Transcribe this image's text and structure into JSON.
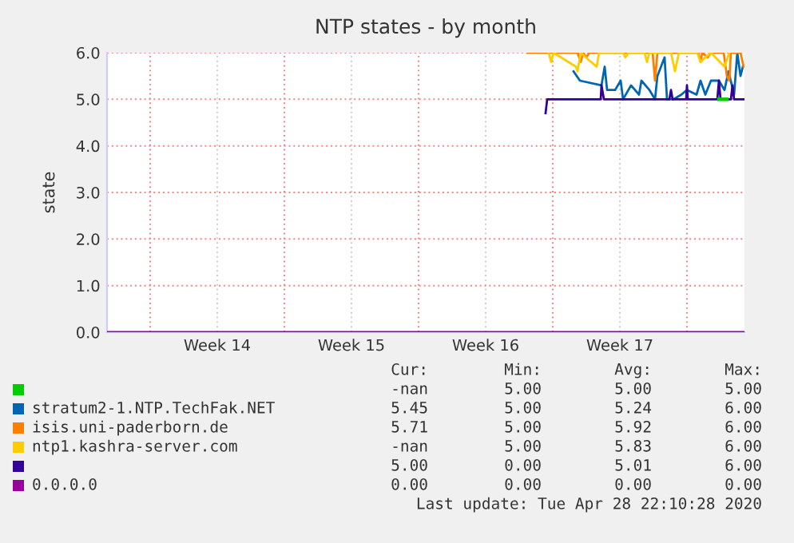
{
  "chart_data": {
    "type": "line",
    "title": "NTP states - by month",
    "ylabel": "state",
    "xlim": [
      "2020-03-27T18:00",
      "2020-04-30T00:00"
    ],
    "ylim": [
      0,
      6
    ],
    "xticks": [
      {
        "value": "2020-03-30",
        "label": null
      },
      {
        "value": "2020-04-02T12:00",
        "label": "Week 14"
      },
      {
        "value": "2020-04-06",
        "label": null
      },
      {
        "value": "2020-04-09T12:00",
        "label": "Week 15"
      },
      {
        "value": "2020-04-13",
        "label": null
      },
      {
        "value": "2020-04-16T12:00",
        "label": "Week 16"
      },
      {
        "value": "2020-04-20",
        "label": null
      },
      {
        "value": "2020-04-23T12:00",
        "label": "Week 17"
      },
      {
        "value": "2020-04-27",
        "label": null
      }
    ],
    "yticks": [
      {
        "value": 0,
        "label": "0.0"
      },
      {
        "value": 1,
        "label": "1.0"
      },
      {
        "value": 2,
        "label": "2.0"
      },
      {
        "value": 3,
        "label": "3.0"
      },
      {
        "value": 4,
        "label": "4.0"
      },
      {
        "value": 5,
        "label": "5.0"
      },
      {
        "value": 6,
        "label": "6.0"
      }
    ],
    "grid": true,
    "legend": "bottom",
    "series": [
      {
        "color": "#00cc00",
        "x": [
          "2020-04-28T16:00",
          "2020-04-29T02:00"
        ],
        "values": [
          5.0,
          5.0
        ]
      },
      {
        "color": "#0066b3",
        "name": "stratum2-1.NTP.TechFak.NET",
        "x": [
          "2020-04-21T02:00",
          "2020-04-21T10:00",
          "2020-04-22T13:00",
          "2020-04-22T17:00",
          "2020-04-22T20:00",
          "2020-04-23T06:00",
          "2020-04-23T13:00",
          "2020-04-23T16:00",
          "2020-04-24T02:00",
          "2020-04-24T12:00",
          "2020-04-24T15:00",
          "2020-04-25T01:00",
          "2020-04-25T08:00",
          "2020-04-25T11:00",
          "2020-04-25T20:00",
          "2020-04-25T23:00",
          "2020-04-26T07:00",
          "2020-04-26T17:00",
          "2020-04-27T00:00",
          "2020-04-27T12:00",
          "2020-04-27T17:00",
          "2020-04-27T23:00",
          "2020-04-28T06:00",
          "2020-04-28T16:00",
          "2020-04-28T23:00",
          "2020-04-29T04:00",
          "2020-04-29T11:00",
          "2020-04-29T15:00",
          "2020-04-29T19:00",
          "2020-04-29T22:00"
        ],
        "values": [
          5.6,
          5.4,
          5.3,
          5.7,
          5.2,
          5.2,
          5.4,
          5.0,
          5.3,
          5.1,
          5.4,
          5.2,
          5.0,
          5.5,
          5.9,
          5.0,
          5.0,
          5.1,
          5.2,
          5.1,
          5.4,
          5.1,
          5.4,
          5.4,
          5.2,
          5.6,
          5.1,
          6.0,
          5.5,
          5.7
        ]
      },
      {
        "color": "#ff8000",
        "name": "isis.uni-paderborn.de",
        "x": [
          "2020-04-18T16:00",
          "2020-04-21T07:00",
          "2020-04-21T11:00",
          "2020-04-21T14:00",
          "2020-04-21T18:00",
          "2020-04-21T22:00",
          "2020-04-25T05:00",
          "2020-04-25T08:00",
          "2020-04-25T11:00",
          "2020-04-27T14:00",
          "2020-04-27T17:00",
          "2020-04-27T19:00",
          "2020-04-28T02:00",
          "2020-04-28T06:00",
          "2020-04-28T22:00",
          "2020-04-29T02:00",
          "2020-04-29T05:00",
          "2020-04-29T07:00",
          "2020-04-29T19:00",
          "2020-04-29T23:00"
        ],
        "values": [
          6.0,
          6.0,
          5.8,
          6.0,
          5.9,
          6.0,
          6.0,
          5.4,
          6.0,
          6.0,
          5.8,
          6.0,
          5.9,
          6.0,
          6.0,
          5.5,
          5.4,
          6.0,
          6.0,
          5.7
        ]
      },
      {
        "color": "#ffcc00",
        "name": "ntp1.kashra-server.com",
        "x": [
          "2020-04-19T19:00",
          "2020-04-19T22:00",
          "2020-04-20T01:00",
          "2020-04-21T05:00",
          "2020-04-21T07:00",
          "2020-04-21T11:00",
          "2020-04-22T00:00",
          "2020-04-22T07:00",
          "2020-04-22T10:00",
          "2020-04-23T16:00",
          "2020-04-23T19:00",
          "2020-04-23T23:00",
          "2020-04-24T19:00",
          "2020-04-24T22:00",
          "2020-04-25T01:00",
          "2020-04-26T04:00",
          "2020-04-26T09:00",
          "2020-04-26T14:00",
          "2020-04-27T13:00",
          "2020-04-27T17:00",
          "2020-04-27T23:00",
          "2020-04-28T06:00",
          "2020-04-28T23:00",
          "2020-04-29T05:00"
        ],
        "values": [
          6.0,
          5.8,
          6.0,
          5.7,
          5.6,
          6.0,
          5.8,
          5.7,
          6.0,
          6.0,
          5.9,
          6.0,
          6.0,
          5.8,
          6.0,
          6.0,
          5.6,
          6.0,
          6.0,
          5.8,
          5.9,
          6.0,
          5.7,
          6.0
        ]
      },
      {
        "color": "#330099",
        "x": [
          "2020-04-19T15:00",
          "2020-04-19T17:00",
          "2020-04-22T12:00",
          "2020-04-22T13:00",
          "2020-04-22T16:00",
          "2020-04-26T02:00",
          "2020-04-26T04:00",
          "2020-04-26T06:00",
          "2020-04-26T23:00",
          "2020-04-27T00:00",
          "2020-04-27T01:00",
          "2020-04-28T14:00",
          "2020-04-28T16:00",
          "2020-04-28T18:00",
          "2020-04-29T07:00",
          "2020-04-29T09:00",
          "2020-04-29T11:00",
          "2020-04-30T00:00"
        ],
        "values": [
          4.7,
          5.0,
          5.0,
          5.3,
          5.0,
          5.0,
          5.2,
          5.0,
          5.0,
          5.3,
          5.0,
          5.0,
          5.4,
          5.0,
          5.0,
          5.3,
          5.0,
          5.0
        ]
      },
      {
        "color": "#990099",
        "name": "0.0.0.0",
        "x": [
          "2020-03-27T18:00",
          "2020-04-30T00:00"
        ],
        "values": [
          0.0,
          0.0
        ]
      }
    ],
    "annotations": [
      "Cur:",
      "Min:",
      "Avg:",
      "Max:",
      "-nan",
      "5.00",
      "5.00",
      "5.00",
      "5.45",
      "5.00",
      "5.24",
      "6.00",
      "5.71",
      "5.00",
      "5.92",
      "6.00",
      "-nan",
      "5.00",
      "5.83",
      "6.00",
      "5.00",
      "0.00",
      "5.01",
      "6.00",
      "0.00",
      "0.00",
      "0.00",
      "0.00",
      "Last update: Tue Apr 28 22:10:28 2020"
    ]
  }
}
